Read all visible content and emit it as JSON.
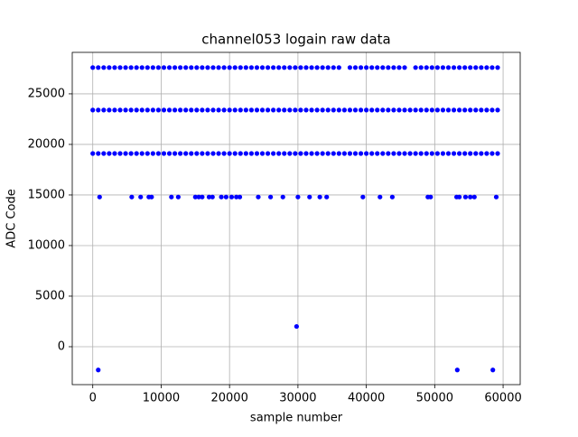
{
  "chart_data": {
    "type": "scatter",
    "title": "channel053 logain raw data",
    "x_label": "sample number",
    "y_label": "ADC Code",
    "color": "#0000ff",
    "grid": true,
    "xlim": [
      -3000,
      62500
    ],
    "ylim": [
      -3750,
      29100
    ],
    "xticks": [
      0,
      10000,
      20000,
      30000,
      40000,
      50000,
      60000
    ],
    "yticks": [
      0,
      5000,
      10000,
      15000,
      20000,
      25000
    ],
    "series": [
      {
        "x": [
          0,
          800,
          1600,
          2400,
          3200,
          4000,
          4800,
          5600,
          6400,
          7200,
          8000,
          8800,
          9600,
          10400,
          11200,
          12000,
          12800,
          13600,
          14400,
          15200,
          16000,
          16800,
          17600,
          18400,
          19200,
          20000,
          20800,
          21600,
          22400,
          23200,
          24000,
          24800,
          25600,
          26400,
          27200,
          28000,
          28800,
          29600,
          30400,
          31200,
          32000,
          32800,
          33600,
          34400,
          35200,
          36000,
          37600,
          38400,
          39200,
          40000,
          40800,
          41600,
          42400,
          43200,
          44000,
          44800,
          45600,
          47200,
          48000,
          48800,
          49600,
          50400,
          51200,
          52000,
          52800,
          53600,
          54400,
          55200,
          56000,
          56800,
          57600,
          58400,
          59200
        ],
        "values": [
          27600,
          27600,
          27600,
          27600,
          27600,
          27600,
          27600,
          27600,
          27600,
          27600,
          27600,
          27600,
          27600,
          27600,
          27600,
          27600,
          27600,
          27600,
          27600,
          27600,
          27600,
          27600,
          27600,
          27600,
          27600,
          27600,
          27600,
          27600,
          27600,
          27600,
          27600,
          27600,
          27600,
          27600,
          27600,
          27600,
          27600,
          27600,
          27600,
          27600,
          27600,
          27600,
          27600,
          27600,
          27600,
          27600,
          27600,
          27600,
          27600,
          27600,
          27600,
          27600,
          27600,
          27600,
          27600,
          27600,
          27600,
          27600,
          27600,
          27600,
          27600,
          27600,
          27600,
          27600,
          27600,
          27600,
          27600,
          27600,
          27600,
          27600,
          27600,
          27600,
          27600
        ]
      },
      {
        "x": [
          0,
          800,
          1600,
          2400,
          3200,
          4000,
          4800,
          5600,
          6400,
          7200,
          8000,
          8800,
          9600,
          10400,
          11200,
          12000,
          12800,
          13600,
          14400,
          15200,
          16000,
          16800,
          17600,
          18400,
          19200,
          20000,
          20800,
          21600,
          22400,
          23200,
          24000,
          24800,
          25600,
          26400,
          27200,
          28000,
          28800,
          29600,
          30400,
          31200,
          32000,
          32800,
          33600,
          34400,
          35200,
          36000,
          36800,
          37600,
          38400,
          39200,
          40000,
          40800,
          41600,
          42400,
          43200,
          44000,
          44800,
          45600,
          46400,
          47200,
          48000,
          48800,
          49600,
          50400,
          51200,
          52000,
          52800,
          53600,
          54400,
          55200,
          56000,
          56800,
          57600,
          58400,
          59200
        ],
        "values": [
          23400,
          23400,
          23400,
          23400,
          23400,
          23400,
          23400,
          23400,
          23400,
          23400,
          23400,
          23400,
          23400,
          23400,
          23400,
          23400,
          23400,
          23400,
          23400,
          23400,
          23400,
          23400,
          23400,
          23400,
          23400,
          23400,
          23400,
          23400,
          23400,
          23400,
          23400,
          23400,
          23400,
          23400,
          23400,
          23400,
          23400,
          23400,
          23400,
          23400,
          23400,
          23400,
          23400,
          23400,
          23400,
          23400,
          23400,
          23400,
          23400,
          23400,
          23400,
          23400,
          23400,
          23400,
          23400,
          23400,
          23400,
          23400,
          23400,
          23400,
          23400,
          23400,
          23400,
          23400,
          23400,
          23400,
          23400,
          23400,
          23400,
          23400,
          23400,
          23400,
          23400,
          23400,
          23400
        ]
      },
      {
        "x": [
          0,
          800,
          1600,
          2400,
          3200,
          4000,
          4800,
          5600,
          6400,
          7200,
          8000,
          8800,
          9600,
          10400,
          11200,
          12000,
          12800,
          13600,
          14400,
          15200,
          16000,
          16800,
          17600,
          18400,
          19200,
          20000,
          20800,
          21600,
          22400,
          23200,
          24000,
          24800,
          25600,
          26400,
          27200,
          28000,
          28800,
          29600,
          30400,
          31200,
          32000,
          32800,
          33600,
          34400,
          35200,
          36000,
          36800,
          37600,
          38400,
          39200,
          40000,
          40800,
          41600,
          42400,
          43200,
          44000,
          44800,
          45600,
          46400,
          47200,
          48000,
          48800,
          49600,
          50400,
          51200,
          52000,
          52800,
          53600,
          54400,
          55200,
          56000,
          56800,
          57600,
          58400,
          59200
        ],
        "values": [
          19100,
          19100,
          19100,
          19100,
          19100,
          19100,
          19100,
          19100,
          19100,
          19100,
          19100,
          19100,
          19100,
          19100,
          19100,
          19100,
          19100,
          19100,
          19100,
          19100,
          19100,
          19100,
          19100,
          19100,
          19100,
          19100,
          19100,
          19100,
          19100,
          19100,
          19100,
          19100,
          19100,
          19100,
          19100,
          19100,
          19100,
          19100,
          19100,
          19100,
          19100,
          19100,
          19100,
          19100,
          19100,
          19100,
          19100,
          19100,
          19100,
          19100,
          19100,
          19100,
          19100,
          19100,
          19100,
          19100,
          19100,
          19100,
          19100,
          19100,
          19100,
          19100,
          19100,
          19100,
          19100,
          19100,
          19100,
          19100,
          19100,
          19100,
          19100,
          19100,
          19100,
          19100,
          19100
        ]
      },
      {
        "x": [
          1000,
          5700,
          7000,
          8200,
          8600,
          11500,
          12500,
          15000,
          15500,
          16000,
          17000,
          17500,
          18800,
          19500,
          20300,
          21000,
          21500,
          24200,
          26000,
          27800,
          30000,
          31700,
          33200,
          34200,
          39500,
          42000,
          43800,
          49000,
          49400,
          53200,
          53600,
          54500,
          55200,
          55800,
          59000
        ],
        "values": [
          14800,
          14800,
          14800,
          14800,
          14800,
          14800,
          14800,
          14800,
          14800,
          14800,
          14800,
          14800,
          14800,
          14800,
          14800,
          14800,
          14800,
          14800,
          14800,
          14800,
          14800,
          14800,
          14800,
          14800,
          14800,
          14800,
          14800,
          14800,
          14800,
          14800,
          14800,
          14800,
          14800,
          14800,
          14800
        ]
      },
      {
        "x": [
          800,
          29800,
          53300,
          58500
        ],
        "values": [
          -2300,
          2000,
          -2300,
          -2300
        ]
      }
    ]
  }
}
